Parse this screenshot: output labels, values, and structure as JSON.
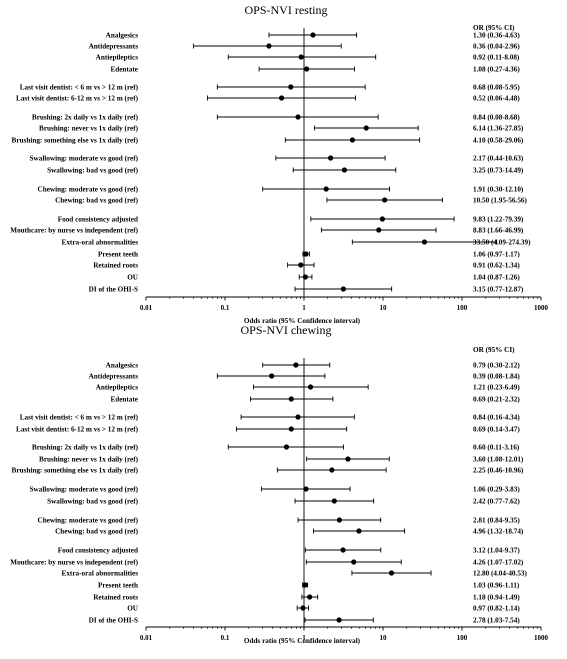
{
  "colors": {
    "background": "#ffffff",
    "ink": "#000000"
  },
  "chart_data": [
    {
      "type": "forest",
      "title": "OPS-NVI resting",
      "column_header": "OR (95% CI)",
      "xlabel": "Odds ratio (95% Confidence interval)",
      "xscale": "log",
      "xlim": [
        0.01,
        1000
      ],
      "xticks": [
        "0.01",
        "0.1",
        "1",
        "10",
        "100",
        "1000"
      ],
      "reference_line": 1,
      "rows": [
        {
          "label": "Analgesics",
          "or": 1.3,
          "lo": 0.36,
          "hi": 4.63,
          "text": "1.30 (0.36-4.63)"
        },
        {
          "label": "Antidepressants",
          "or": 0.36,
          "lo": 0.04,
          "hi": 2.96,
          "text": "0.36 (0.04-2.96)"
        },
        {
          "label": "Antiepileptics",
          "or": 0.92,
          "lo": 0.11,
          "hi": 8.08,
          "text": "0.92 (0.11-8.08)"
        },
        {
          "label": "Edentate",
          "or": 1.08,
          "lo": 0.27,
          "hi": 4.36,
          "text": "1.08 (0.27-4.36)"
        },
        {
          "label": "Last visit dentist: < 6 m vs > 12 m (ref)",
          "or": 0.68,
          "lo": 0.08,
          "hi": 5.95,
          "text": "0.68 (0.08-5.95)"
        },
        {
          "label": "Last visit dentist: 6-12 m vs > 12 m (ref)",
          "or": 0.52,
          "lo": 0.06,
          "hi": 4.48,
          "text": "0.52 (0.06-4.48)"
        },
        {
          "label": "Brushing: 2x daily vs 1x daily (ref)",
          "or": 0.84,
          "lo": 0.08,
          "hi": 8.68,
          "text": "0.84 (0.08-8.68)"
        },
        {
          "label": "Brushing: never vs 1x daily (ref)",
          "or": 6.14,
          "lo": 1.36,
          "hi": 27.85,
          "text": "6.14 (1.36-27.85)"
        },
        {
          "label": "Brushing: something else vs 1x daily (ref)",
          "or": 4.1,
          "lo": 0.58,
          "hi": 29.06,
          "text": "4.10 (0.58-29.06)"
        },
        {
          "label": "Swallowing: moderate vs good (ref)",
          "or": 2.17,
          "lo": 0.44,
          "hi": 10.63,
          "text": "2.17 (0.44-10.63)"
        },
        {
          "label": "Swallowing: bad vs good (ref)",
          "or": 3.25,
          "lo": 0.73,
          "hi": 14.49,
          "text": "3.25 (0.73-14.49)"
        },
        {
          "label": "Chewing: moderate vs good (ref)",
          "or": 1.91,
          "lo": 0.3,
          "hi": 12.1,
          "text": "1.91 (0.30-12.10)"
        },
        {
          "label": "Chewing: bad vs good (ref)",
          "or": 10.5,
          "lo": 1.95,
          "hi": 56.56,
          "text": "10.50 (1.95-56.56)"
        },
        {
          "label": "Food consistency adjusted",
          "or": 9.83,
          "lo": 1.22,
          "hi": 79.39,
          "text": "9.83 (1.22-79.39)"
        },
        {
          "label": "Mouthcare: by nurse vs independent (ref)",
          "or": 8.83,
          "lo": 1.66,
          "hi": 46.99,
          "text": "8.83 (1.66-46.99)"
        },
        {
          "label": "Extra-oral abnormalities",
          "or": 33.5,
          "lo": 4.09,
          "hi": 274.39,
          "text": "33.50 (4.09-274.39)"
        },
        {
          "label": "Present teeth",
          "or": 1.06,
          "lo": 0.97,
          "hi": 1.17,
          "text": "1.06 (0.97-1.17)"
        },
        {
          "label": "Retained roots",
          "or": 0.91,
          "lo": 0.62,
          "hi": 1.34,
          "text": "0.91 (0.62-1.34)"
        },
        {
          "label": "OU",
          "or": 1.04,
          "lo": 0.87,
          "hi": 1.26,
          "text": "1.04 (0.87-1.26)"
        },
        {
          "label": "DI of the OHI-S",
          "or": 3.15,
          "lo": 0.77,
          "hi": 12.87,
          "text": "3.15 (0.77-12.87)"
        }
      ]
    },
    {
      "type": "forest",
      "title": "OPS-NVI chewing",
      "column_header": "OR (95% CI)",
      "xlabel": "Odds ratio (95% Confidence interval)",
      "xscale": "log",
      "xlim": [
        0.01,
        1000
      ],
      "xticks": [
        "0.01",
        "0.1",
        "1",
        "10",
        "100",
        "1000"
      ],
      "reference_line": 1,
      "rows": [
        {
          "label": "Analgesics",
          "or": 0.79,
          "lo": 0.3,
          "hi": 2.12,
          "text": "0.79 (0.30-2.12)"
        },
        {
          "label": "Antidepressants",
          "or": 0.39,
          "lo": 0.08,
          "hi": 1.84,
          "text": "0.39 (0.08-1.84)"
        },
        {
          "label": "Antiepileptics",
          "or": 1.21,
          "lo": 0.23,
          "hi": 6.49,
          "text": "1.21 (0.23-6.49)"
        },
        {
          "label": "Edentate",
          "or": 0.69,
          "lo": 0.21,
          "hi": 2.32,
          "text": "0.69 (0.21-2.32)"
        },
        {
          "label": "Last visit dentist: < 6 m vs > 12 m (ref)",
          "or": 0.84,
          "lo": 0.16,
          "hi": 4.34,
          "text": "0.84 (0.16-4.34)"
        },
        {
          "label": "Last visit dentist: 6-12 m vs > 12 m (ref)",
          "or": 0.69,
          "lo": 0.14,
          "hi": 3.47,
          "text": "0.69 (0.14-3.47)"
        },
        {
          "label": "Brushing: 2x daily vs 1x daily (ref)",
          "or": 0.6,
          "lo": 0.11,
          "hi": 3.16,
          "text": "0.60 (0.11-3.16)"
        },
        {
          "label": "Brushing: never vs 1x daily (ref)",
          "or": 3.6,
          "lo": 1.08,
          "hi": 12.01,
          "text": "3.60 (1.08-12.01)"
        },
        {
          "label": "Brushing: something else vs 1x daily (ref)",
          "or": 2.25,
          "lo": 0.46,
          "hi": 10.96,
          "text": "2.25 (0.46-10.96)"
        },
        {
          "label": "Swallowing: moderate vs good (ref)",
          "or": 1.06,
          "lo": 0.29,
          "hi": 3.83,
          "text": "1.06 (0.29-3.83)"
        },
        {
          "label": "Swallowing: bad vs good (ref)",
          "or": 2.42,
          "lo": 0.77,
          "hi": 7.62,
          "text": "2.42 (0.77-7.62)"
        },
        {
          "label": "Chewing: moderate vs good (ref)",
          "or": 2.81,
          "lo": 0.84,
          "hi": 9.35,
          "text": "2.81 (0.84-9.35)"
        },
        {
          "label": "Chewing: bad vs good (ref)",
          "or": 4.96,
          "lo": 1.32,
          "hi": 18.74,
          "text": "4.96 (1.32-18.74)"
        },
        {
          "label": "Food consistency adjusted",
          "or": 3.12,
          "lo": 1.04,
          "hi": 9.37,
          "text": "3.12 (1.04-9.37)"
        },
        {
          "label": "Mouthcare: by nurse vs independent (ref)",
          "or": 4.26,
          "lo": 1.07,
          "hi": 17.02,
          "text": "4.26 (1.07-17.02)"
        },
        {
          "label": "Extra-oral abnormalities",
          "or": 12.8,
          "lo": 4.04,
          "hi": 40.53,
          "text": "12.80 (4.04-40.53)"
        },
        {
          "label": "Present teeth",
          "or": 1.03,
          "lo": 0.96,
          "hi": 1.11,
          "text": "1.03 (0.96-1.11)"
        },
        {
          "label": "Retained roots",
          "or": 1.18,
          "lo": 0.94,
          "hi": 1.49,
          "text": "1.18 (0.94-1.49)"
        },
        {
          "label": "OU",
          "or": 0.97,
          "lo": 0.82,
          "hi": 1.14,
          "text": "0.97 (0.82-1.14)"
        },
        {
          "label": "DI of the OHI-S",
          "or": 2.78,
          "lo": 1.03,
          "hi": 7.54,
          "text": "2.78 (1.03-7.54)"
        }
      ]
    }
  ]
}
